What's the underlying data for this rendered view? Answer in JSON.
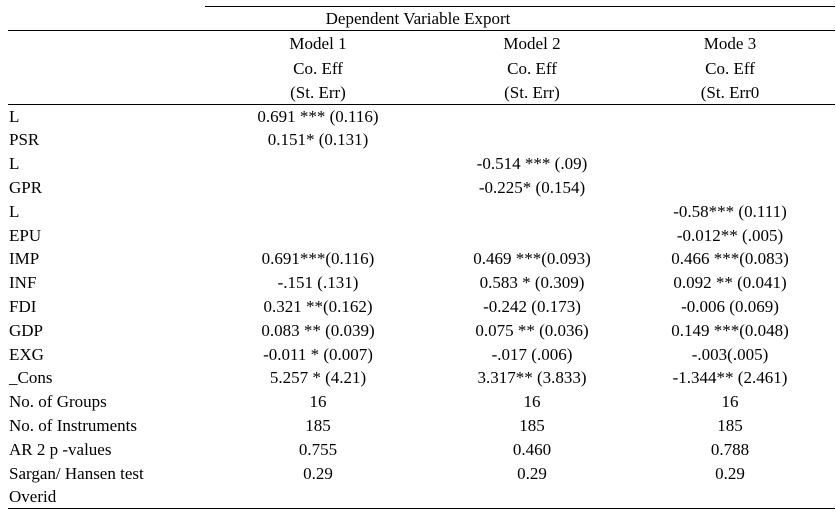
{
  "table": {
    "title": "Dependent Variable Export",
    "columns": [
      {
        "model": "Model 1",
        "coef": "Co. Eff",
        "se": "(St. Err)"
      },
      {
        "model": "Model 2",
        "coef": "Co. Eff",
        "se": "(St. Err)"
      },
      {
        "model": "Mode 3",
        "coef": "Co. Eff",
        "se": "(St. Err0"
      }
    ],
    "rows": [
      {
        "label": "L",
        "values": [
          "0.691 *** (0.116)",
          "",
          ""
        ]
      },
      {
        "label": "PSR",
        "values": [
          "0.151* (0.131)",
          "",
          ""
        ]
      },
      {
        "label": "L",
        "values": [
          "",
          "-0.514 *** (.09)",
          ""
        ]
      },
      {
        "label": "GPR",
        "values": [
          "",
          "-0.225* (0.154)",
          ""
        ]
      },
      {
        "label": "L",
        "values": [
          "",
          "",
          "-0.58*** (0.111)"
        ]
      },
      {
        "label": "EPU",
        "values": [
          "",
          "",
          "-0.012** (.005)"
        ]
      },
      {
        "label": "IMP",
        "values": [
          "0.691***(0.116)",
          "0.469 ***(0.093)",
          "0.466 ***(0.083)"
        ]
      },
      {
        "label": "INF",
        "values": [
          "-.151 (.131)",
          "0.583 * (0.309)",
          "0.092 ** (0.041)"
        ]
      },
      {
        "label": "FDI",
        "values": [
          "0.321 **(0.162)",
          "-0.242 (0.173)",
          "-0.006 (0.069)"
        ]
      },
      {
        "label": "GDP",
        "values": [
          "0.083 ** (0.039)",
          "0.075 ** (0.036)",
          "0.149 ***(0.048)"
        ]
      },
      {
        "label": "EXG",
        "values": [
          "-0.011 * (0.007)",
          "-.017 (.006)",
          "-.003(.005)"
        ]
      },
      {
        "label": "_Cons",
        "values": [
          "5.257 * (4.21)",
          "3.317** (3.833)",
          "-1.344** (2.461)"
        ]
      },
      {
        "label": "No. of Groups",
        "values": [
          "16",
          "16",
          "16"
        ]
      },
      {
        "label": "No. of Instruments",
        "values": [
          "185",
          "185",
          "185"
        ]
      },
      {
        "label": "AR 2 p -values",
        "values": [
          "0.755",
          "0.460",
          "0.788"
        ]
      },
      {
        "label": "Sargan/ Hansen test",
        "values": [
          "0.29",
          "0.29",
          "0.29"
        ]
      },
      {
        "label": "Overid",
        "values": [
          "",
          "",
          ""
        ]
      }
    ]
  }
}
